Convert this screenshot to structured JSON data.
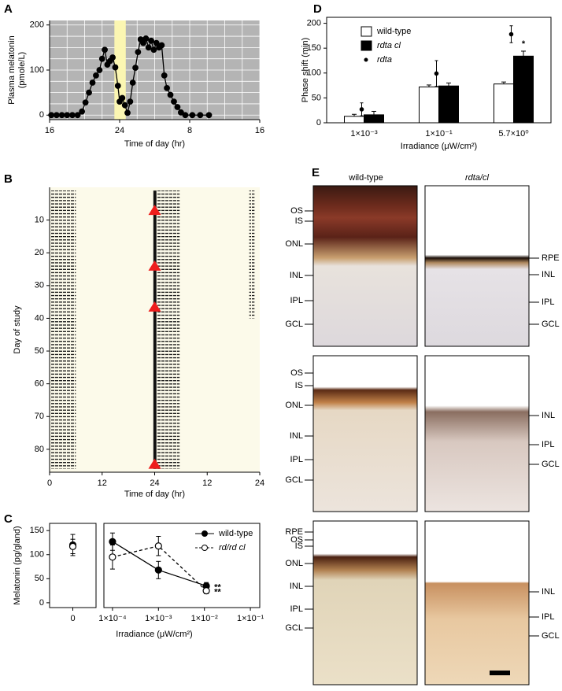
{
  "chart_data": [
    {
      "panel_label": "A",
      "type": "line",
      "ylabel": [
        "Plasma melatonin",
        "(pmole/L)"
      ],
      "xlabel": "Time of day (hr)",
      "x": [
        16.2,
        16.8,
        17.4,
        18.0,
        18.6,
        19.2,
        19.7,
        20.1,
        20.5,
        20.9,
        21.3,
        21.7,
        22.0,
        22.3,
        22.6,
        22.9,
        23.2,
        23.5,
        23.8,
        24.0,
        24.3,
        24.6,
        24.9,
        25.2,
        25.5,
        25.8,
        26.1,
        26.4,
        26.7,
        27.0,
        27.3,
        27.6,
        27.9,
        28.2,
        28.5,
        28.8,
        29.1,
        29.4,
        29.8,
        30.2,
        30.6,
        31.0,
        31.5,
        32.3,
        33.2,
        34.2
      ],
      "series": [
        {
          "color": "#000000",
          "marker": "filled",
          "values": [
            0,
            0,
            0,
            0,
            0,
            0,
            8,
            28,
            50,
            72,
            88,
            100,
            125,
            145,
            112,
            120,
            128,
            106,
            65,
            30,
            38,
            22,
            5,
            30,
            72,
            105,
            140,
            168,
            160,
            170,
            150,
            165,
            145,
            160,
            150,
            155,
            88,
            60,
            45,
            30,
            18,
            6,
            0,
            0,
            0,
            0
          ]
        }
      ],
      "xlim": [
        16,
        40
      ],
      "xticks": [
        16,
        24,
        {
          "value": 32,
          "label": "8"
        },
        {
          "value": 40,
          "label": "16"
        }
      ],
      "ylim": [
        -10,
        210
      ],
      "yticks": [
        0,
        100,
        200
      ],
      "grid": true,
      "grid_step": [
        2,
        25
      ],
      "background": "#b4b4b4",
      "highlight": {
        "x": [
          23.4,
          24.7
        ],
        "color": "#fbf6b2"
      }
    },
    {
      "panel_label": "B",
      "type": "actogram",
      "ylabel": "Day of study",
      "xlabel": "Time of day (hr)",
      "xlim": [
        0,
        48
      ],
      "xticks": [
        0,
        12,
        24,
        {
          "value": 36,
          "label": "12"
        },
        {
          "value": 48,
          "label": "24"
        }
      ],
      "ylim": [
        0,
        87
      ],
      "yticks": [
        10,
        20,
        30,
        40,
        50,
        60,
        70,
        80
      ],
      "background": "#fcfaea",
      "bouts": [
        {
          "days": [
            1,
            86
          ],
          "hours": [
            0.3,
            6.0
          ]
        },
        {
          "days": [
            1,
            86
          ],
          "hours": [
            23.7,
            24.4
          ]
        },
        {
          "days": [
            1,
            86
          ],
          "hours": [
            24.4,
            29.7
          ]
        },
        {
          "days": [
            1,
            40
          ],
          "hours": [
            45.6,
            46.8
          ]
        }
      ],
      "pulses": {
        "x": [
          24,
          24,
          24,
          24
        ],
        "y": [
          7,
          24,
          36.5,
          84.5
        ],
        "color": "#ee1c1c"
      }
    },
    {
      "panel_label": "C",
      "type": "dot",
      "ylabel": "Melatonin (pg/gland)",
      "categories": [
        "0"
      ],
      "series": [
        {
          "color": "#000000",
          "marker": "filled",
          "values": [
            120
          ],
          "errors": [
            22
          ]
        },
        {
          "color": "#000000",
          "marker": "open",
          "values": [
            117
          ],
          "errors": [
            15
          ]
        }
      ],
      "ylim": [
        -10,
        165
      ],
      "yticks": [
        0,
        50,
        100,
        150
      ]
    },
    {
      "type": "line",
      "log_x": true,
      "xlabel": "Irradiance (μW/cm²)",
      "x": [
        0.0001,
        0.001,
        0.011
      ],
      "series": [
        {
          "name": "wild-type",
          "color": "#000000",
          "marker": "filled",
          "dash": false,
          "values": [
            127,
            68,
            35
          ],
          "errors": [
            18,
            18,
            7
          ],
          "notes": [
            null,
            null,
            "**"
          ]
        },
        {
          "name": "rd/rd cl",
          "color": "#000000",
          "marker": "open",
          "dash": true,
          "values": [
            95,
            118,
            25
          ],
          "errors": [
            25,
            20,
            6
          ],
          "notes": [
            null,
            null,
            "**"
          ]
        }
      ],
      "xlim": [
        6.5e-05,
        0.16
      ],
      "xticks": [
        {
          "value": 0.0001,
          "label": "1×10⁻⁴"
        },
        {
          "value": 0.001,
          "label": "1×10⁻³"
        },
        {
          "value": 0.01,
          "label": "1×10⁻²"
        },
        {
          "value": 0.1,
          "label": "1×10⁻¹"
        }
      ],
      "ylim": [
        -10,
        165
      ],
      "legend": "upper right"
    },
    {
      "panel_label": "D",
      "type": "bar",
      "ylabel": "Phase shift (min)",
      "xlabel": "Irradiance (μW/cm²)",
      "categories": [
        "1×10⁻³",
        "1×10⁻¹",
        "5.7×10⁰"
      ],
      "series": [
        {
          "name": "wild-type",
          "color": "#ffffff",
          "values": [
            13,
            72,
            78
          ],
          "errors": [
            4,
            4,
            4
          ]
        },
        {
          "name": "rdta cl",
          "color": "#000000",
          "values": [
            16,
            74,
            134
          ],
          "errors": [
            7,
            6,
            10
          ],
          "notes": [
            null,
            null,
            "*"
          ]
        },
        {
          "name": "rdta",
          "type": "point",
          "color": "#000000",
          "values": [
            27,
            99,
            178
          ],
          "errors": [
            13,
            26,
            17
          ]
        }
      ],
      "ylim": [
        0,
        212
      ],
      "yticks": [
        0,
        50,
        100,
        150,
        200
      ],
      "legend": "upper left"
    }
  ],
  "micrographs": {
    "panel_label": "E",
    "columns": [
      "wild-type",
      "rdta/cl"
    ],
    "rows": [
      {
        "left": [
          "OS",
          "IS",
          "ONL",
          "INL",
          "IPL",
          "GCL"
        ],
        "right": [
          "RPE",
          "INL",
          "IPL",
          "GCL"
        ]
      },
      {
        "left": [
          "OS",
          "IS",
          "ONL",
          "INL",
          "IPL",
          "GCL"
        ],
        "right": [
          "INL",
          "IPL",
          "GCL"
        ]
      },
      {
        "left": [
          "RPE",
          "OS",
          "IS",
          "ONL",
          "INL",
          "IPL",
          "GCL"
        ],
        "right": [
          "INL",
          "IPL",
          "GCL"
        ]
      }
    ]
  }
}
